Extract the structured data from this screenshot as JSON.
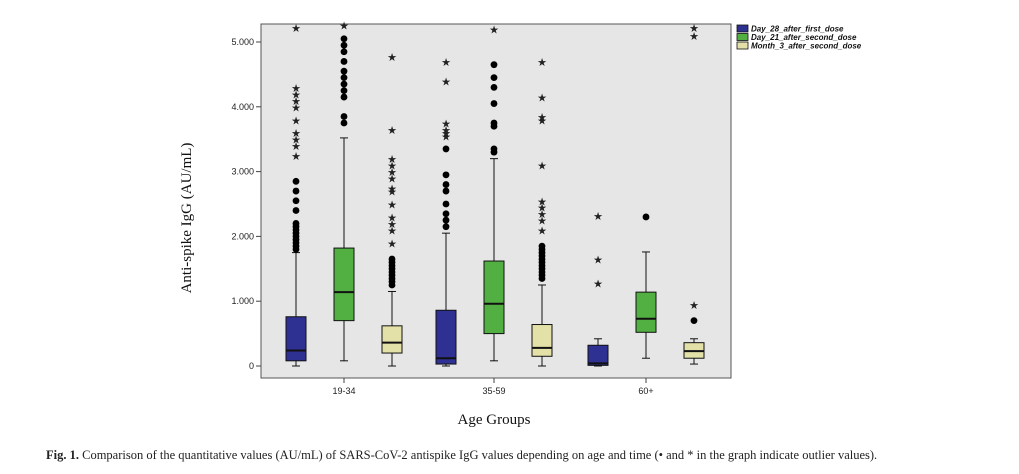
{
  "caption": {
    "label": "Fig. 1.",
    "text": "Comparison of the quantitative values (AU/mL) of SARS-CoV-2 antispike IgG values depending on age and time (• and * in the graph indicate outlier values)."
  },
  "chart_data": {
    "type": "box",
    "xlabel": "Age Groups",
    "ylabel": "Anti-spike IgG (AU/mL)",
    "ylim": [
      -100,
      5300
    ],
    "yticks": [
      0,
      1000,
      2000,
      3000,
      4000,
      5000
    ],
    "ytick_labels": [
      "0",
      "1.000",
      "2.000",
      "3.000",
      "4.000",
      "5.000"
    ],
    "categories": [
      "19-34",
      "35-59",
      "60+"
    ],
    "legend_position": "top-right",
    "grid": false,
    "background": "#e6e6e6",
    "series": [
      {
        "name": "Day_28_after_first_dose",
        "color": "#2e3192",
        "boxes": [
          {
            "min": 0,
            "q1": 80,
            "median": 240,
            "q3": 760,
            "max": 1750,
            "outliers_circle": [
              1800,
              1850,
              1900,
              1950,
              2000,
              2050,
              2100,
              2150,
              2200,
              2400,
              2550,
              2700,
              2850
            ],
            "outliers_star": [
              3250,
              3400,
              3500,
              3600,
              3800,
              4000,
              4100,
              4200,
              4300,
              5220
            ]
          },
          {
            "min": 0,
            "q1": 30,
            "median": 120,
            "q3": 860,
            "max": 2050,
            "outliers_circle": [
              2150,
              2250,
              2350,
              2500,
              2700,
              2800,
              2950,
              3350
            ],
            "outliers_star": [
              3550,
              3600,
              3650,
              3750,
              4400,
              4700
            ]
          },
          {
            "min": 0,
            "q1": 10,
            "median": 40,
            "q3": 320,
            "max": 420,
            "outliers_circle": [],
            "outliers_star": [
              1280,
              1650,
              2320
            ]
          }
        ]
      },
      {
        "name": "Day_21_after_second_dose",
        "color": "#52b043",
        "boxes": [
          {
            "min": 80,
            "q1": 700,
            "median": 1140,
            "q3": 1820,
            "max": 3520,
            "outliers_circle": [
              3750,
              3850,
              4150,
              4250,
              4350,
              4450,
              4550,
              4700,
              4850,
              4950,
              5050
            ],
            "outliers_star": [
              5260
            ]
          },
          {
            "min": 80,
            "q1": 500,
            "median": 960,
            "q3": 1620,
            "max": 3200,
            "outliers_circle": [
              3300,
              3350,
              3700,
              3750,
              4050,
              4300,
              4450,
              4650
            ],
            "outliers_star": [
              5200
            ]
          },
          {
            "min": 120,
            "q1": 520,
            "median": 730,
            "q3": 1140,
            "max": 1760,
            "outliers_circle": [
              2300
            ],
            "outliers_star": []
          }
        ]
      },
      {
        "name": "Month_3_after_second_dose",
        "color": "#e3e0a8",
        "boxes": [
          {
            "min": 0,
            "q1": 200,
            "median": 360,
            "q3": 620,
            "max": 1150,
            "outliers_circle": [
              1250,
              1300,
              1350,
              1400,
              1450,
              1500,
              1550,
              1600,
              1650
            ],
            "outliers_star": [
              1900,
              2100,
              2200,
              2300,
              2500,
              2700,
              2750,
              2900,
              3000,
              3100,
              3200,
              3650,
              4780
            ]
          },
          {
            "min": 0,
            "q1": 150,
            "median": 280,
            "q3": 640,
            "max": 1250,
            "outliers_circle": [
              1350,
              1400,
              1450,
              1500,
              1550,
              1600,
              1650,
              1700,
              1750,
              1800,
              1850
            ],
            "outliers_star": [
              2100,
              2250,
              2350,
              2450,
              2550,
              3100,
              3800,
              3850,
              4150,
              4700
            ]
          },
          {
            "min": 30,
            "q1": 120,
            "median": 230,
            "q3": 360,
            "max": 420,
            "outliers_circle": [
              700
            ],
            "outliers_star": [
              950,
              5100,
              5220
            ]
          }
        ]
      }
    ]
  }
}
